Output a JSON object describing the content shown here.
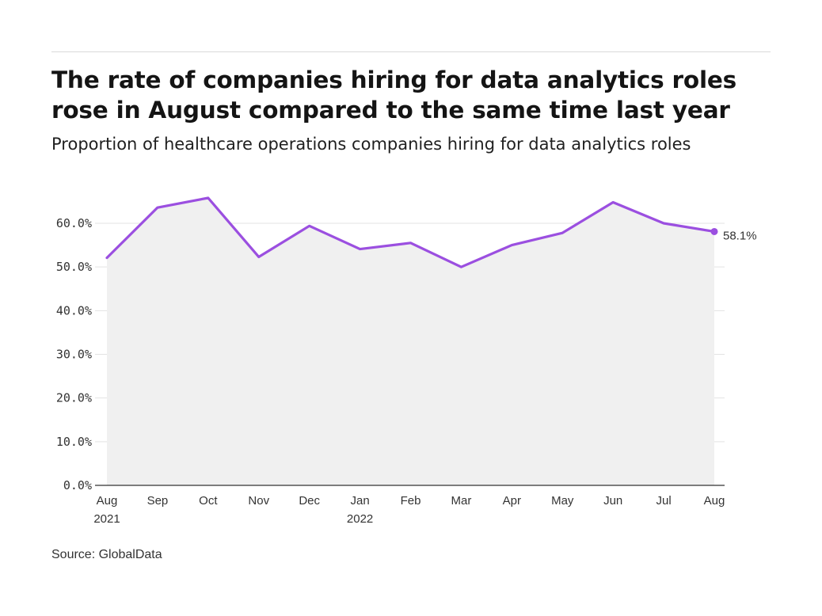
{
  "title": "The rate of companies hiring for data analytics roles rose in August compared to the same time last year",
  "subtitle": "Proportion of healthcare operations companies hiring for data analytics roles",
  "source": "Source: GlobalData",
  "colors": {
    "line": "#9b4fe0",
    "area": "#f0f0f0",
    "grid": "#e3e3e3",
    "axis": "#333333"
  },
  "chart_data": {
    "type": "area",
    "categories": [
      "Aug",
      "Sep",
      "Oct",
      "Nov",
      "Dec",
      "Jan",
      "Feb",
      "Mar",
      "Apr",
      "May",
      "Jun",
      "Jul",
      "Aug"
    ],
    "x_sublabels": [
      "2021",
      "",
      "",
      "",
      "",
      "2022",
      "",
      "",
      "",
      "",
      "",
      "",
      ""
    ],
    "series": [
      {
        "values": [
          52.1,
          63.6,
          65.8,
          52.3,
          59.4,
          54.1,
          55.5,
          50.0,
          55.0,
          57.8,
          64.8,
          60.0,
          58.1
        ]
      }
    ],
    "yticks": [
      0,
      10,
      20,
      30,
      40,
      50,
      60
    ],
    "ytick_labels": [
      "0.0%",
      "10.0%",
      "20.0%",
      "30.0%",
      "40.0%",
      "50.0%",
      "60.0%"
    ],
    "ylim": [
      0,
      60
    ],
    "end_label": "58.1%",
    "grid": true
  }
}
